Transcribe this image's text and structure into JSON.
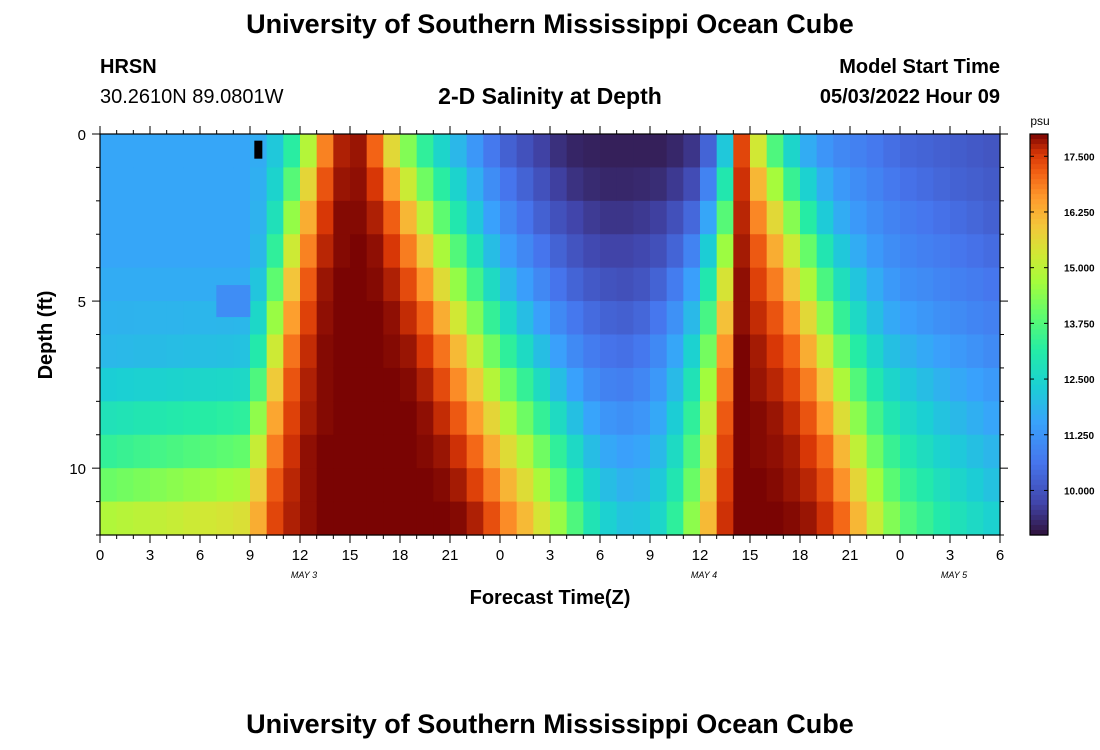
{
  "page": {
    "title": "University of Southern Mississippi Ocean Cube",
    "station": "HRSN",
    "coords": "30.2610N  89.0801W",
    "subtitle": "2-D Salinity at Depth",
    "model_label": "Model Start Time",
    "model_time": "05/03/2022 Hour 09",
    "footer_title": "University of Southern Mississippi Ocean Cube"
  },
  "chart_data": {
    "type": "heatmap",
    "title": "2-D Salinity at Depth",
    "xlabel": "Forecast Time(Z)",
    "ylabel": "Depth (ft)",
    "x_range_hours": [
      0,
      54
    ],
    "x_ticks": [
      {
        "hour": 0,
        "label": "0"
      },
      {
        "hour": 3,
        "label": "3"
      },
      {
        "hour": 6,
        "label": "6"
      },
      {
        "hour": 9,
        "label": "9"
      },
      {
        "hour": 12,
        "label": "12"
      },
      {
        "hour": 15,
        "label": "15"
      },
      {
        "hour": 18,
        "label": "18"
      },
      {
        "hour": 21,
        "label": "21"
      },
      {
        "hour": 24,
        "label": "0"
      },
      {
        "hour": 27,
        "label": "3"
      },
      {
        "hour": 30,
        "label": "6"
      },
      {
        "hour": 33,
        "label": "9"
      },
      {
        "hour": 36,
        "label": "12"
      },
      {
        "hour": 39,
        "label": "15"
      },
      {
        "hour": 42,
        "label": "18"
      },
      {
        "hour": 45,
        "label": "21"
      },
      {
        "hour": 48,
        "label": "0"
      },
      {
        "hour": 51,
        "label": "3"
      },
      {
        "hour": 54,
        "label": "6"
      }
    ],
    "date_labels": [
      {
        "hour": 12,
        "label": "MAY 3"
      },
      {
        "hour": 36,
        "label": "MAY 4"
      },
      {
        "hour": 51,
        "label": "MAY 5"
      }
    ],
    "y_range_ft": [
      0,
      12
    ],
    "y_ticks": [
      {
        "value": 0,
        "label": "0"
      },
      {
        "value": 5,
        "label": "5"
      },
      {
        "value": 10,
        "label": "10"
      }
    ],
    "depth_levels_ft": [
      0.5,
      1.5,
      2.5,
      3.5,
      4.5,
      5.5,
      6.5,
      7.5,
      8.5,
      9.5,
      10.5,
      11.5
    ],
    "time_step_hours": 1,
    "colorbar": {
      "unit": "psu",
      "min": 9.0,
      "max": 18.0,
      "ticks": [
        10.0,
        11.25,
        12.5,
        13.75,
        15.0,
        16.25,
        17.5
      ],
      "tick_labels": [
        "10.000",
        "11.250",
        "12.500",
        "13.750",
        "15.000",
        "16.250",
        "17.500"
      ]
    },
    "salinity_profile_keyframes": {
      "description": "Estimated salinity (psu) by hour; each row lists values for depth levels 0.5 to 11.5 ft",
      "hours": [
        0,
        9,
        10,
        11,
        12,
        13,
        14,
        15,
        16,
        17,
        18,
        19,
        20,
        21,
        22,
        23,
        24,
        26,
        28,
        30,
        32,
        34,
        36,
        37,
        37.5,
        38,
        38.5,
        39,
        40,
        41,
        42,
        43,
        44,
        45,
        46,
        47,
        48,
        51,
        54
      ],
      "values": [
        [
          11.6,
          11.6,
          11.6,
          11.6,
          11.7,
          11.8,
          11.9,
          12.3,
          12.8,
          13.3,
          14.0,
          14.8
        ],
        [
          11.6,
          11.6,
          11.6,
          11.6,
          11.7,
          11.9,
          12.1,
          12.6,
          13.3,
          14.0,
          14.8,
          15.5
        ],
        [
          11.8,
          11.9,
          12.0,
          12.2,
          12.6,
          13.2,
          14.0,
          14.8,
          15.6,
          16.3,
          16.8,
          17.1
        ],
        [
          12.6,
          13.0,
          13.6,
          14.4,
          15.2,
          15.9,
          16.5,
          16.9,
          17.2,
          17.4,
          17.6,
          17.7
        ],
        [
          13.8,
          14.6,
          15.4,
          16.1,
          16.7,
          17.1,
          17.4,
          17.6,
          17.7,
          17.8,
          17.8,
          17.8
        ],
        [
          16.0,
          16.7,
          17.2,
          17.5,
          17.7,
          17.8,
          17.9,
          17.9,
          17.9,
          18.0,
          18.0,
          18.0
        ],
        [
          17.6,
          17.8,
          17.9,
          17.9,
          18.0,
          18.0,
          18.0,
          18.0,
          18.0,
          18.0,
          18.0,
          18.0
        ],
        [
          17.9,
          17.9,
          18.0,
          18.0,
          18.0,
          18.0,
          18.0,
          18.0,
          18.0,
          18.0,
          18.0,
          18.0
        ],
        [
          17.8,
          17.9,
          17.9,
          18.0,
          18.0,
          18.0,
          18.0,
          18.0,
          18.0,
          18.0,
          18.0,
          18.0
        ],
        [
          16.4,
          17.2,
          17.6,
          17.8,
          17.9,
          18.0,
          18.0,
          18.0,
          18.0,
          18.0,
          18.0,
          18.0
        ],
        [
          14.8,
          15.8,
          16.7,
          17.3,
          17.6,
          17.8,
          17.9,
          18.0,
          18.0,
          18.0,
          18.0,
          18.0
        ],
        [
          13.8,
          14.6,
          15.6,
          16.4,
          17.1,
          17.5,
          17.8,
          17.9,
          18.0,
          18.0,
          18.0,
          18.0
        ],
        [
          12.8,
          13.6,
          14.4,
          15.3,
          16.1,
          16.8,
          17.3,
          17.6,
          17.8,
          17.9,
          18.0,
          18.0
        ],
        [
          12.2,
          12.8,
          13.4,
          14.2,
          15.0,
          15.8,
          16.6,
          17.1,
          17.5,
          17.8,
          17.9,
          18.0
        ],
        [
          11.6,
          12.1,
          12.6,
          13.3,
          14.0,
          14.8,
          15.6,
          16.3,
          16.9,
          17.4,
          17.7,
          17.9
        ],
        [
          11.0,
          11.4,
          11.8,
          12.4,
          13.1,
          13.8,
          14.6,
          15.4,
          16.1,
          16.7,
          17.2,
          17.6
        ],
        [
          10.4,
          10.8,
          11.2,
          11.6,
          12.2,
          12.9,
          13.6,
          14.4,
          15.2,
          15.9,
          16.5,
          17.0
        ],
        [
          9.8,
          10.1,
          10.4,
          10.8,
          11.2,
          11.7,
          12.3,
          13.0,
          13.7,
          14.5,
          15.2,
          15.8
        ],
        [
          9.3,
          9.5,
          9.8,
          10.1,
          10.4,
          10.8,
          11.2,
          11.7,
          12.3,
          12.9,
          13.5,
          14.1
        ],
        [
          9.2,
          9.3,
          9.5,
          9.7,
          10.0,
          10.3,
          10.6,
          10.9,
          11.3,
          11.7,
          12.1,
          12.5
        ],
        [
          9.2,
          9.3,
          9.5,
          9.7,
          9.9,
          10.2,
          10.5,
          10.8,
          11.1,
          11.4,
          11.7,
          12.0
        ],
        [
          9.2,
          9.4,
          9.7,
          10.0,
          10.4,
          10.8,
          11.2,
          11.5,
          11.8,
          12.1,
          12.4,
          12.7
        ],
        [
          9.6,
          10.0,
          10.6,
          11.2,
          11.8,
          12.3,
          12.8,
          13.3,
          13.8,
          14.2,
          14.6,
          15.0
        ],
        [
          11.0,
          11.8,
          12.6,
          13.4,
          14.2,
          14.9,
          15.5,
          16.0,
          16.4,
          16.7,
          17.0,
          17.2
        ],
        [
          12.2,
          13.0,
          13.8,
          14.6,
          15.4,
          16.0,
          16.6,
          16.9,
          17.2,
          17.4,
          17.5,
          17.6
        ],
        [
          15.4,
          15.9,
          16.4,
          16.9,
          17.2,
          17.5,
          17.7,
          17.8,
          17.9,
          17.9,
          18.0,
          18.0
        ],
        [
          17.4,
          17.6,
          17.7,
          17.8,
          17.9,
          17.9,
          18.0,
          18.0,
          18.0,
          18.0,
          18.0,
          18.0
        ],
        [
          16.2,
          16.9,
          17.3,
          17.6,
          17.7,
          17.8,
          17.9,
          17.9,
          18.0,
          18.0,
          18.0,
          18.0
        ],
        [
          14.4,
          15.4,
          16.2,
          16.8,
          17.2,
          17.5,
          17.7,
          17.8,
          17.9,
          17.9,
          18.0,
          18.0
        ],
        [
          13.0,
          14.0,
          15.0,
          15.8,
          16.5,
          17.0,
          17.4,
          17.6,
          17.8,
          17.9,
          17.9,
          18.0
        ],
        [
          12.0,
          12.8,
          13.7,
          14.6,
          15.4,
          16.2,
          16.8,
          17.2,
          17.5,
          17.7,
          17.8,
          17.9
        ],
        [
          11.4,
          12.0,
          12.6,
          13.4,
          14.2,
          15.0,
          15.8,
          16.5,
          17.0,
          17.4,
          17.6,
          17.8
        ],
        [
          11.1,
          11.5,
          11.9,
          12.5,
          13.1,
          13.8,
          14.6,
          15.4,
          16.1,
          16.7,
          17.1,
          17.4
        ],
        [
          10.9,
          11.2,
          11.5,
          11.9,
          12.4,
          12.9,
          13.5,
          14.2,
          14.9,
          15.6,
          16.2,
          16.7
        ],
        [
          10.8,
          11.0,
          11.2,
          11.5,
          11.9,
          12.3,
          12.8,
          13.3,
          13.9,
          14.5,
          15.1,
          15.6
        ],
        [
          10.6,
          10.8,
          11.0,
          11.2,
          11.5,
          11.8,
          12.2,
          12.7,
          13.2,
          13.7,
          14.2,
          14.7
        ],
        [
          10.4,
          10.6,
          10.8,
          11.0,
          11.2,
          11.5,
          11.9,
          12.3,
          12.7,
          13.1,
          13.5,
          13.9
        ],
        [
          10.2,
          10.3,
          10.5,
          10.7,
          10.9,
          11.1,
          11.4,
          11.7,
          12.0,
          12.3,
          12.6,
          12.9
        ],
        [
          10.0,
          10.1,
          10.2,
          10.4,
          10.6,
          10.8,
          11.0,
          11.3,
          11.5,
          11.8,
          12.0,
          12.3
        ]
      ]
    },
    "patches": [
      {
        "hour": 8,
        "depth_ft": 5.0,
        "value": 11.1
      },
      {
        "hour": 9.5,
        "depth_ft": 0.2,
        "value": 8.6,
        "note": "black marker near surface"
      }
    ]
  }
}
